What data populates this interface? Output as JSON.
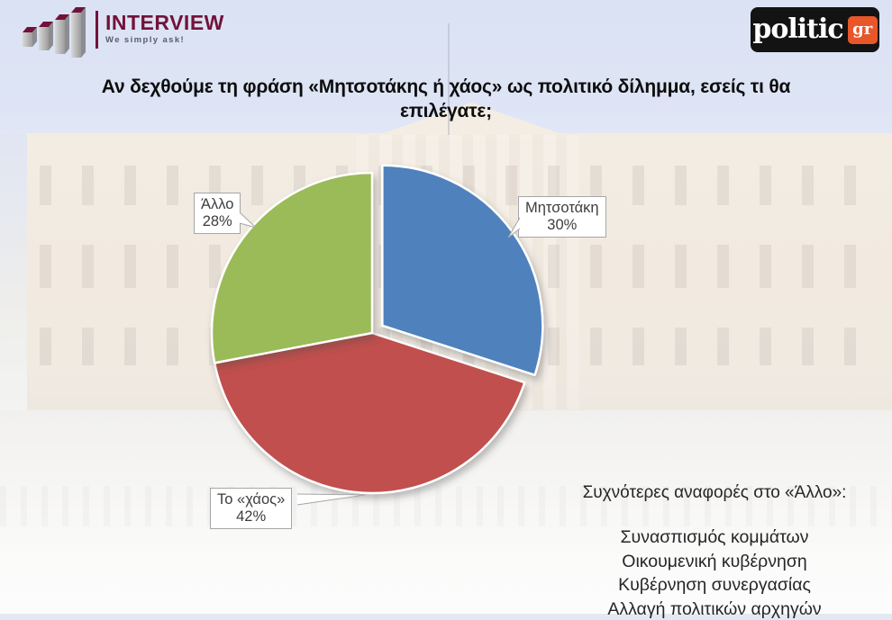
{
  "brand": {
    "interview": {
      "name": "INTERVIEW",
      "tagline": "We simply ask!",
      "color": "#72123a"
    },
    "politic": {
      "name": "politic",
      "suffix": "gr",
      "accent_color": "#e8572a",
      "bg_color": "#131313"
    }
  },
  "title": "Αν δεχθούμε τη φράση «Μητσοτάκης ή χάος» ως πολιτικό δίλημμα, εσείς τι θα επιλέγατε;",
  "chart_data": {
    "type": "pie",
    "title": "Αν δεχθούμε τη φράση «Μητσοτάκης ή χάος» ως πολιτικό δίλημμα, εσείς τι θα επιλέγατε;",
    "unit": "percent",
    "direction": "clockwise",
    "start_angle_deg": 0,
    "legend_position": "none",
    "label_style": "callout-boxes",
    "slices": [
      {
        "label": "Μητσοτάκη",
        "value": 30,
        "percent_label": "30%",
        "color": "#4f81bd",
        "exploded": true
      },
      {
        "label": "Το «χάος»",
        "value": 42,
        "percent_label": "42%",
        "color": "#c0504d",
        "exploded": false
      },
      {
        "label": "Άλλο",
        "value": 28,
        "percent_label": "28%",
        "color": "#9bbb59",
        "exploded": false
      }
    ]
  },
  "notes": {
    "heading": "Συχνότερες αναφορές στο «Άλλο»:",
    "items": [
      "Συνασπισμός κομμάτων",
      "Οικουμενική κυβέρνηση",
      "Κυβέρνηση συνεργασίας",
      "Αλλαγή πολιτικών αρχηγών"
    ]
  }
}
